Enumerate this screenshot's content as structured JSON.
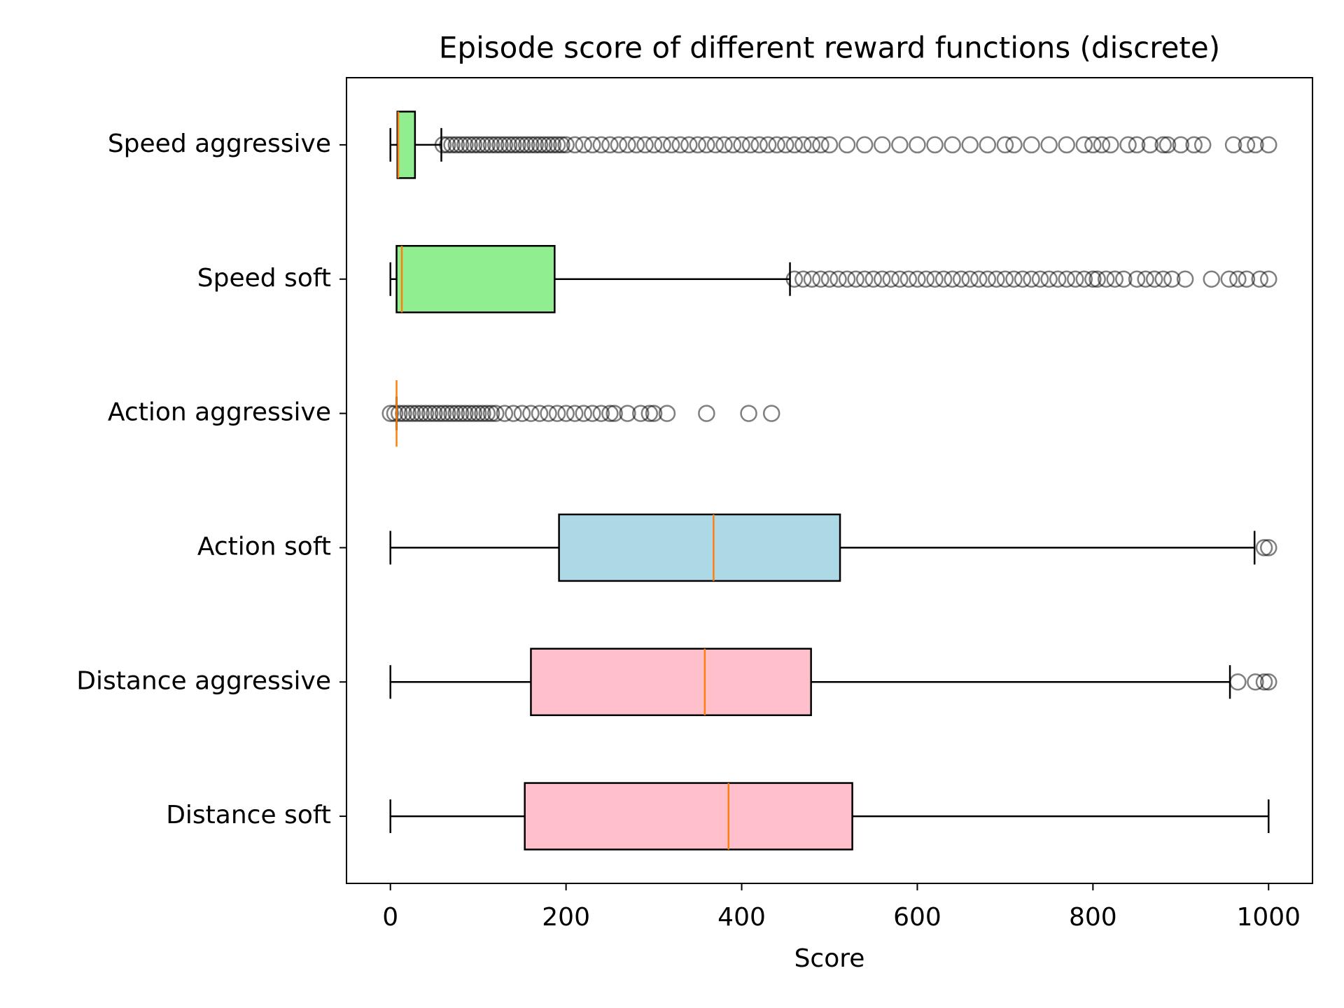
{
  "chart_data": {
    "type": "boxplot",
    "title": "Episode score of different reward functions (discrete)",
    "xlabel": "Score",
    "categories": [
      "Speed aggressive",
      "Speed soft",
      "Action aggressive",
      "Action soft",
      "Distance aggressive",
      "Distance soft"
    ],
    "xlim": [
      -50,
      1050
    ],
    "xticks": [
      0,
      200,
      400,
      600,
      800,
      1000
    ],
    "median_color": "#ff7f0e",
    "boxes": [
      {
        "whislo": 0,
        "q1": 8,
        "median": 9,
        "q3": 28,
        "whishi": 58,
        "color": "#90ee90",
        "fliers": [
          60,
          65,
          70,
          75,
          80,
          85,
          90,
          95,
          100,
          105,
          110,
          115,
          120,
          125,
          130,
          135,
          140,
          145,
          150,
          155,
          160,
          165,
          170,
          175,
          180,
          185,
          190,
          195,
          200,
          210,
          220,
          230,
          240,
          250,
          260,
          270,
          280,
          290,
          300,
          310,
          320,
          330,
          340,
          350,
          360,
          370,
          380,
          390,
          400,
          410,
          420,
          430,
          440,
          450,
          460,
          470,
          480,
          490,
          500,
          520,
          540,
          560,
          580,
          600,
          620,
          640,
          660,
          680,
          700,
          710,
          730,
          750,
          770,
          790,
          800,
          810,
          820,
          840,
          850,
          865,
          880,
          885,
          900,
          915,
          925,
          960,
          975,
          985,
          1000
        ]
      },
      {
        "whislo": 0,
        "q1": 7,
        "median": 13,
        "q3": 187,
        "whishi": 455,
        "color": "#90ee90",
        "fliers": [
          460,
          470,
          480,
          490,
          500,
          510,
          520,
          530,
          540,
          550,
          560,
          570,
          580,
          590,
          600,
          610,
          620,
          630,
          640,
          650,
          660,
          670,
          680,
          690,
          700,
          710,
          720,
          730,
          740,
          750,
          760,
          770,
          780,
          790,
          800,
          805,
          815,
          825,
          835,
          850,
          860,
          870,
          880,
          890,
          905,
          935,
          955,
          965,
          975,
          990,
          1000
        ]
      },
      {
        "whislo": 7,
        "q1": 7,
        "median": 7,
        "q3": 7,
        "whishi": 7,
        "color": "#add8e6",
        "fliers": [
          0,
          5,
          10,
          15,
          20,
          25,
          30,
          35,
          40,
          45,
          50,
          55,
          60,
          65,
          70,
          75,
          80,
          85,
          90,
          95,
          100,
          105,
          110,
          115,
          120,
          130,
          140,
          150,
          160,
          170,
          180,
          190,
          200,
          210,
          220,
          230,
          240,
          250,
          255,
          270,
          285,
          295,
          300,
          315,
          360,
          408,
          434
        ]
      },
      {
        "whislo": 0,
        "q1": 192,
        "median": 368,
        "q3": 512,
        "whishi": 984,
        "color": "#add8e6",
        "fliers": [
          995,
          1000
        ]
      },
      {
        "whislo": 0,
        "q1": 160,
        "median": 358,
        "q3": 479,
        "whishi": 956,
        "color": "#ffc0cb",
        "fliers": [
          965,
          985,
          995,
          1000
        ]
      },
      {
        "whislo": 0,
        "q1": 153,
        "median": 385,
        "q3": 526,
        "whishi": 1000,
        "color": "#ffc0cb",
        "fliers": []
      }
    ]
  }
}
